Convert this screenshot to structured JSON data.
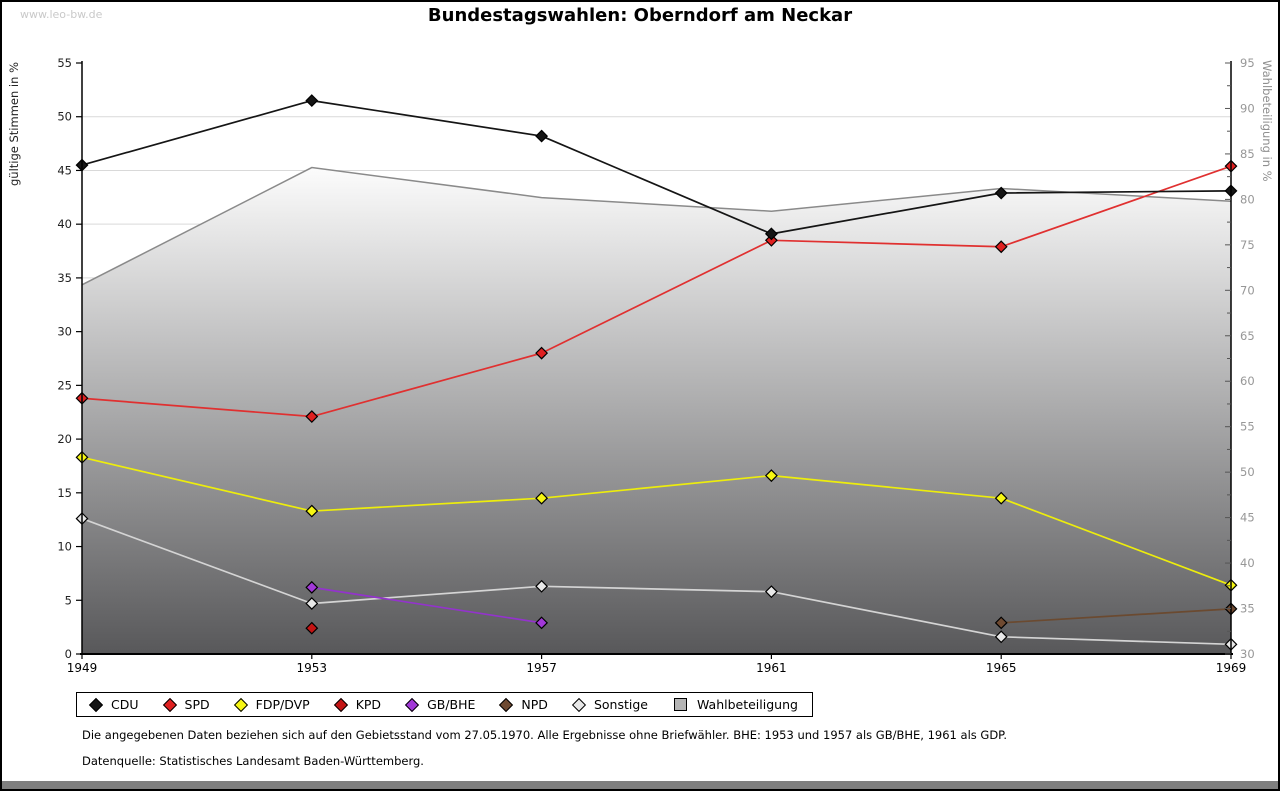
{
  "page": {
    "watermark": "www.leo-bw.de",
    "title": "Bundestagswahlen: Oberndorf am Neckar",
    "footnote_line1": "Die angegebenen Daten beziehen sich auf den Gebietsstand vom 27.05.1970. Alle Ergebnisse ohne Briefwähler. BHE: 1953 und 1957 als GB/BHE, 1961 als GDP.",
    "footnote_line2": "Datenquelle: Statistisches Landesamt Baden-Württemberg."
  },
  "axes": {
    "left_label": "gültige Stimmen in %",
    "right_label": "Wahlbeteiligung in %"
  },
  "chart_data": {
    "type": "line",
    "title": "Bundestagswahlen: Oberndorf am Neckar",
    "x": [
      1949,
      1953,
      1957,
      1961,
      1965,
      1969
    ],
    "xticklabels": [
      "1949",
      "1953",
      "1957",
      "1961",
      "1965",
      "1969"
    ],
    "ylabel_left": "gültige Stimmen in %",
    "ylabel_right": "Wahlbeteiligung in %",
    "ylim_left": [
      0,
      55
    ],
    "ytick_step_left": 5,
    "ylim_right": [
      30,
      95
    ],
    "ytick_step_right": 5,
    "ytick_minor_step_right": 2.5,
    "grid": "horizontal",
    "legend_position": "bottom",
    "colors": {
      "grid": "#d9d9d9",
      "area_line": "#8a8a8a",
      "area_gradient_top": "#fcfcfc",
      "area_gradient_bottom": "#58585a",
      "axis": "#000000",
      "right_tick_text": "#979797"
    },
    "series": [
      {
        "name": "CDU",
        "axis": "left",
        "color": "#151515",
        "marker_fill": "#151515",
        "marker": "diamond",
        "values": [
          45.5,
          51.5,
          48.2,
          39.1,
          42.9,
          43.1
        ]
      },
      {
        "name": "SPD",
        "axis": "left",
        "color": "#e03030",
        "marker_fill": "#e02020",
        "marker": "diamond",
        "values": [
          23.8,
          22.1,
          28.0,
          38.5,
          37.9,
          45.4
        ]
      },
      {
        "name": "FDP/DVP",
        "axis": "left",
        "color": "#eded0c",
        "marker_fill": "#f6f613",
        "marker": "diamond",
        "values": [
          18.3,
          13.3,
          14.5,
          16.6,
          14.5,
          6.4
        ]
      },
      {
        "name": "KPD",
        "axis": "left",
        "color": "#bb1515",
        "marker_fill": "#c41414",
        "marker": "diamond",
        "values": [
          null,
          2.4,
          null,
          null,
          null,
          null
        ]
      },
      {
        "name": "GB/BHE",
        "axis": "left",
        "color": "#9333cc",
        "marker_fill": "#a238d8",
        "marker": "diamond",
        "values": [
          null,
          6.2,
          2.9,
          null,
          null,
          null
        ]
      },
      {
        "name": "NPD",
        "axis": "left",
        "color": "#6b4a30",
        "marker_fill": "#6f4a31",
        "marker": "diamond",
        "values": [
          null,
          null,
          null,
          null,
          2.9,
          4.2
        ]
      },
      {
        "name": "Sonstige",
        "axis": "left",
        "color": "#d4d4d4",
        "marker_fill": "#e8e8e8",
        "marker": "diamond",
        "values": [
          12.6,
          4.7,
          6.3,
          5.8,
          1.6,
          0.9
        ]
      },
      {
        "name": "Wahlbeteiligung",
        "axis": "right",
        "color": "#8a8a8a",
        "marker_fill": "#b4b4b4",
        "marker": "square",
        "type": "area",
        "values": [
          70.6,
          83.5,
          80.2,
          78.7,
          81.2,
          79.8
        ]
      }
    ]
  },
  "legend": {
    "items": [
      {
        "label": "CDU"
      },
      {
        "label": "SPD"
      },
      {
        "label": "FDP/DVP"
      },
      {
        "label": "KPD"
      },
      {
        "label": "GB/BHE"
      },
      {
        "label": "NPD"
      },
      {
        "label": "Sonstige"
      },
      {
        "label": "Wahlbeteiligung"
      }
    ]
  }
}
